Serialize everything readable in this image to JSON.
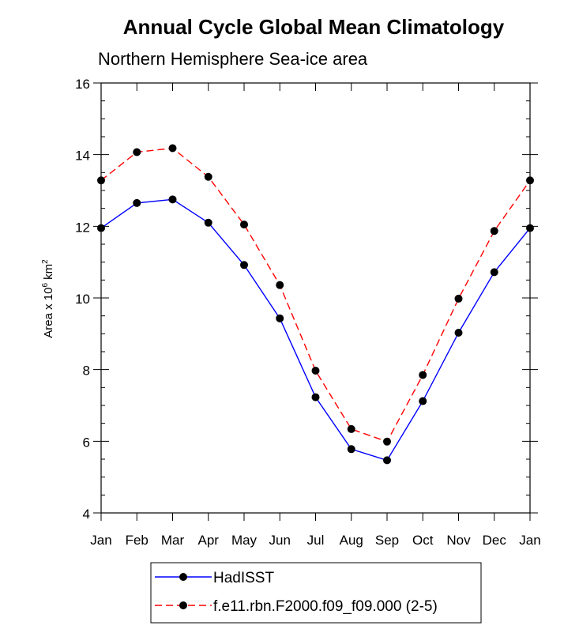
{
  "chart_data": {
    "type": "line",
    "title": "Annual Cycle Global Mean Climatology",
    "subtitle": "Northern Hemisphere Sea-ice area",
    "xlabel": "",
    "ylabel": "Area x 10",
    "ylabel_exponent": "6",
    "ylabel_unit": " km",
    "ylabel_unit_exponent": "2",
    "categories": [
      "Jan",
      "Feb",
      "Mar",
      "Apr",
      "May",
      "Jun",
      "Jul",
      "Aug",
      "Sep",
      "Oct",
      "Nov",
      "Dec",
      "Jan"
    ],
    "ylim": [
      4,
      16
    ],
    "yticks": [
      4,
      6,
      8,
      10,
      12,
      14,
      16
    ],
    "series": [
      {
        "name": "HadISST",
        "color": "#0000ff",
        "dash": "solid",
        "values": [
          11.95,
          12.65,
          12.75,
          12.1,
          10.92,
          9.43,
          7.23,
          5.78,
          5.47,
          7.12,
          9.03,
          10.72,
          11.95
        ]
      },
      {
        "name": "f.e11.rbn.F2000.f09_f09.000 (2-5)",
        "color": "#ff0000",
        "dash": "dashed",
        "values": [
          13.28,
          14.07,
          14.18,
          13.38,
          12.05,
          10.36,
          7.97,
          6.34,
          5.99,
          7.85,
          9.98,
          11.87,
          13.28
        ]
      }
    ],
    "legend_position": "bottom-center"
  }
}
